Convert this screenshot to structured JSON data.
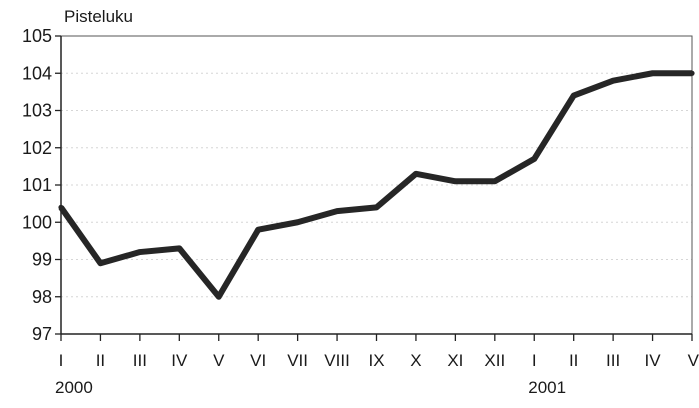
{
  "chart_data": {
    "type": "line",
    "ylabel": "Pisteluku",
    "xlabel": "",
    "title": "",
    "ylim": [
      97,
      105
    ],
    "yticks": [
      "97",
      "98",
      "99",
      "100",
      "101",
      "102",
      "103",
      "104",
      "105"
    ],
    "categories": [
      "I",
      "II",
      "III",
      "IV",
      "V",
      "VI",
      "VII",
      "VIII",
      "IX",
      "X",
      "XI",
      "XII",
      "I",
      "II",
      "III",
      "IV",
      "V"
    ],
    "years": [
      {
        "label": "2000",
        "category_index": 0
      },
      {
        "label": "2001",
        "category_index": 12
      }
    ],
    "series": [
      {
        "values": [
          100.4,
          98.9,
          99.2,
          99.3,
          98.0,
          99.8,
          100.0,
          100.3,
          100.4,
          101.3,
          101.1,
          101.1,
          101.7,
          103.4,
          103.8,
          104.0,
          104.0
        ]
      }
    ],
    "grid": true,
    "line_color": "#262626"
  }
}
